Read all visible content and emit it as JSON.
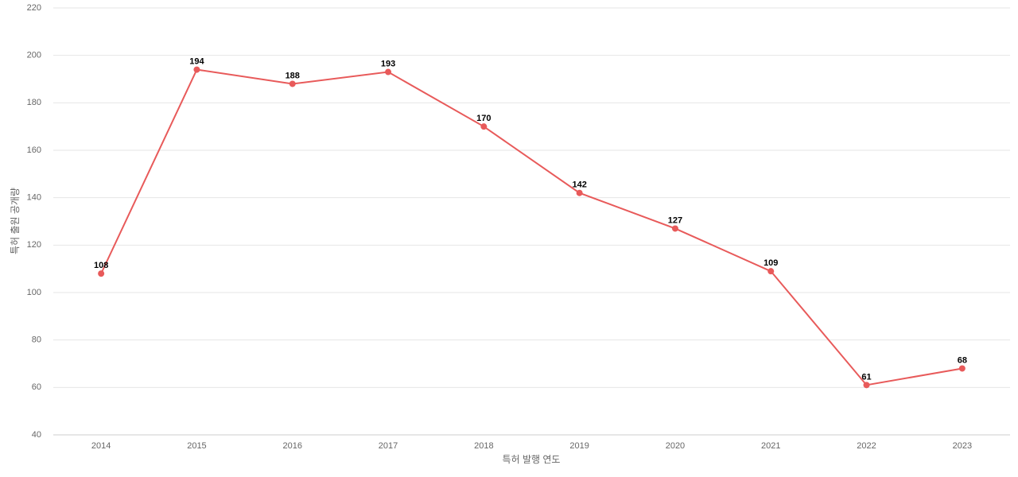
{
  "chart_data": {
    "type": "line",
    "x_label": "특허 발행 연도",
    "y_label": "특허 출원 공개량",
    "categories": [
      "2014",
      "2015",
      "2016",
      "2017",
      "2018",
      "2019",
      "2020",
      "2021",
      "2022",
      "2023"
    ],
    "values": [
      108,
      194,
      188,
      193,
      170,
      142,
      127,
      109,
      61,
      68
    ],
    "color": "#e85a5a",
    "ylim": [
      40,
      220
    ],
    "yticks": [
      40,
      60,
      80,
      100,
      120,
      140,
      160,
      180,
      200,
      220
    ],
    "grid": true
  }
}
